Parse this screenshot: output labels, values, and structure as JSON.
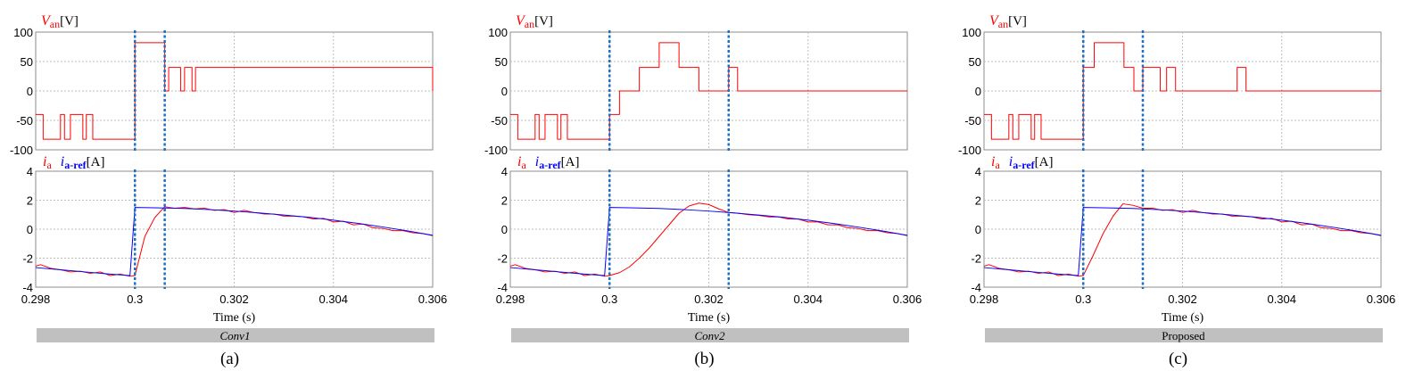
{
  "chart_data": [
    {
      "type": "line",
      "panel_label": "(a)",
      "caption": "Conv1",
      "caption_italic": true,
      "xlabel": "Time (s)",
      "xlim": [
        0.298,
        0.306
      ],
      "xticks": [
        0.298,
        0.3,
        0.302,
        0.304,
        0.306
      ],
      "xtick_labels": [
        "0.298",
        "0.3",
        "0.302",
        "0.304",
        "0.306"
      ],
      "vlines": [
        0.3,
        0.3006
      ],
      "top": {
        "ylabel_main": "V",
        "ylabel_sub": "an",
        "ylabel_unit": "[V]",
        "ylim": [
          -100,
          100
        ],
        "yticks": [
          100,
          50,
          0,
          -50,
          -100
        ],
        "series": [
          {
            "color": "#ff0000",
            "step": true,
            "x": [
              0.298,
              0.29815,
              0.2985,
              0.29858,
              0.2987,
              0.29895,
              0.29902,
              0.29915,
              0.29932,
              0.3,
              0.3006,
              0.30068,
              0.3008,
              0.30092,
              0.301,
              0.30115,
              0.30122,
              0.306
            ],
            "y": [
              -40,
              -82,
              -40,
              -82,
              -40,
              -82,
              -40,
              -82,
              -82,
              82,
              0,
              40,
              40,
              0,
              40,
              0,
              40,
              0
            ]
          }
        ]
      },
      "bottom": {
        "ylabel_main": "i",
        "ylabel_sub": "a",
        "ylabel_ref_main": "i",
        "ylabel_ref_sub": "a-ref",
        "ylabel_unit": "[A]",
        "ylim": [
          -4,
          4
        ],
        "yticks": [
          4,
          2,
          0,
          -2,
          -4
        ],
        "series": [
          {
            "name_main": "i",
            "name_sub": "a",
            "color": "#ff0000",
            "x": [
              0.298,
              0.2981,
              0.2983,
              0.2985,
              0.2987,
              0.2989,
              0.2991,
              0.2993,
              0.2995,
              0.2997,
              0.2999,
              0.3,
              0.3002,
              0.3004,
              0.3006,
              0.3008,
              0.301,
              0.3012,
              0.3014,
              0.3016,
              0.3018,
              0.302,
              0.3022,
              0.3024,
              0.3026,
              0.3028,
              0.303,
              0.3032,
              0.3034,
              0.3036,
              0.3038,
              0.304,
              0.3042,
              0.3044,
              0.3046,
              0.3048,
              0.305,
              0.3052,
              0.3054,
              0.3056,
              0.3058,
              0.306
            ],
            "y": [
              -2.55,
              -2.45,
              -2.7,
              -2.8,
              -2.95,
              -2.9,
              -3.05,
              -2.95,
              -3.2,
              -3.1,
              -3.25,
              -3.2,
              -0.5,
              0.8,
              1.55,
              1.45,
              1.5,
              1.4,
              1.45,
              1.3,
              1.35,
              1.15,
              1.3,
              1.15,
              1.05,
              1.05,
              0.9,
              0.9,
              0.85,
              0.7,
              0.75,
              0.5,
              0.55,
              0.3,
              0.35,
              0.1,
              0.05,
              -0.1,
              -0.1,
              -0.25,
              -0.3,
              -0.45
            ]
          },
          {
            "name_main": "i",
            "name_sub": "a-ref",
            "color": "#0000ff",
            "x": [
              0.298,
              0.2985,
              0.299,
              0.2995,
              0.2999,
              0.3,
              0.3004,
              0.301,
              0.3015,
              0.302,
              0.3025,
              0.303,
              0.3035,
              0.304,
              0.3045,
              0.305,
              0.3055,
              0.306
            ],
            "y": [
              -2.65,
              -2.8,
              -2.95,
              -3.1,
              -3.2,
              1.5,
              1.48,
              1.43,
              1.35,
              1.25,
              1.12,
              0.98,
              0.82,
              0.62,
              0.4,
              0.15,
              -0.12,
              -0.42
            ]
          }
        ]
      }
    },
    {
      "type": "line",
      "panel_label": "(b)",
      "caption": "Conv2",
      "caption_italic": true,
      "xlabel": "Time (s)",
      "xlim": [
        0.298,
        0.306
      ],
      "xticks": [
        0.298,
        0.3,
        0.302,
        0.304,
        0.306
      ],
      "xtick_labels": [
        "0.298",
        "0.3",
        "0.302",
        "0.304",
        "0.306"
      ],
      "vlines": [
        0.3,
        0.3024
      ],
      "top": {
        "ylabel_main": "V",
        "ylabel_sub": "an",
        "ylabel_unit": "[V]",
        "ylim": [
          -100,
          100
        ],
        "yticks": [
          100,
          50,
          0,
          -50,
          -100
        ],
        "series": [
          {
            "color": "#ff0000",
            "step": true,
            "x": [
              0.298,
              0.29815,
              0.2985,
              0.29858,
              0.2987,
              0.29895,
              0.29902,
              0.29915,
              0.29932,
              0.3,
              0.3002,
              0.3006,
              0.301,
              0.3014,
              0.3018,
              0.3024,
              0.30258,
              0.306
            ],
            "y": [
              -40,
              -82,
              -40,
              -82,
              -40,
              -82,
              -40,
              -82,
              -82,
              -40,
              0,
              40,
              82,
              40,
              0,
              40,
              0,
              0
            ]
          }
        ]
      },
      "bottom": {
        "ylabel_main": "i",
        "ylabel_sub": "a",
        "ylabel_ref_main": "i",
        "ylabel_ref_sub": "a-ref",
        "ylabel_unit": "[A]",
        "ylim": [
          -4,
          4
        ],
        "yticks": [
          4,
          2,
          0,
          -2,
          -4
        ],
        "series": [
          {
            "name_main": "i",
            "name_sub": "a",
            "color": "#ff0000",
            "x": [
              0.298,
              0.2981,
              0.2983,
              0.2985,
              0.2987,
              0.2989,
              0.2991,
              0.2993,
              0.2995,
              0.2997,
              0.2999,
              0.3,
              0.3002,
              0.3004,
              0.3006,
              0.3008,
              0.301,
              0.3012,
              0.3014,
              0.3016,
              0.3018,
              0.302,
              0.3022,
              0.3024,
              0.3026,
              0.3028,
              0.303,
              0.3032,
              0.3034,
              0.3036,
              0.3038,
              0.304,
              0.3042,
              0.3044,
              0.3046,
              0.3048,
              0.305,
              0.3052,
              0.3054,
              0.3056,
              0.3058,
              0.306
            ],
            "y": [
              -2.55,
              -2.45,
              -2.7,
              -2.8,
              -2.95,
              -2.9,
              -3.05,
              -2.95,
              -3.2,
              -3.1,
              -3.25,
              -3.2,
              -3.0,
              -2.6,
              -2.0,
              -1.3,
              -0.5,
              0.3,
              1.1,
              1.6,
              1.8,
              1.7,
              1.4,
              1.15,
              1.1,
              1.0,
              0.95,
              0.85,
              0.85,
              0.7,
              0.7,
              0.5,
              0.5,
              0.3,
              0.3,
              0.1,
              0.05,
              -0.1,
              -0.1,
              -0.25,
              -0.3,
              -0.45
            ]
          },
          {
            "name_main": "i",
            "name_sub": "a-ref",
            "color": "#0000ff",
            "x": [
              0.298,
              0.2985,
              0.299,
              0.2995,
              0.2999,
              0.3,
              0.3004,
              0.301,
              0.3015,
              0.302,
              0.3025,
              0.303,
              0.3035,
              0.304,
              0.3045,
              0.305,
              0.3055,
              0.306
            ],
            "y": [
              -2.65,
              -2.8,
              -2.95,
              -3.1,
              -3.2,
              1.5,
              1.48,
              1.43,
              1.35,
              1.25,
              1.12,
              0.98,
              0.82,
              0.62,
              0.4,
              0.15,
              -0.12,
              -0.42
            ]
          }
        ]
      }
    },
    {
      "type": "line",
      "panel_label": "(c)",
      "caption": "Proposed",
      "caption_italic": false,
      "xlabel": "Time (s)",
      "xlim": [
        0.298,
        0.306
      ],
      "xticks": [
        0.298,
        0.3,
        0.302,
        0.304,
        0.306
      ],
      "xtick_labels": [
        "0.298",
        "0.3",
        "0.302",
        "0.304",
        "0.306"
      ],
      "vlines": [
        0.3,
        0.3012
      ],
      "top": {
        "ylabel_main": "V",
        "ylabel_sub": "an",
        "ylabel_unit": "[V]",
        "ylim": [
          -100,
          100
        ],
        "yticks": [
          100,
          50,
          0,
          -50,
          -100
        ],
        "series": [
          {
            "color": "#ff0000",
            "step": true,
            "x": [
              0.298,
              0.29815,
              0.2985,
              0.29858,
              0.2987,
              0.29895,
              0.29902,
              0.29915,
              0.29932,
              0.3,
              0.30022,
              0.30082,
              0.30102,
              0.3012,
              0.30155,
              0.30168,
              0.30186,
              0.3022,
              0.3031,
              0.30328,
              0.306
            ],
            "y": [
              -40,
              -82,
              -40,
              -82,
              -40,
              -82,
              -40,
              -82,
              -82,
              40,
              82,
              40,
              0,
              40,
              0,
              40,
              0,
              0,
              40,
              0,
              0
            ]
          }
        ]
      },
      "bottom": {
        "ylabel_main": "i",
        "ylabel_sub": "a",
        "ylabel_ref_main": "i",
        "ylabel_ref_sub": "a-ref",
        "ylabel_unit": "[A]",
        "ylim": [
          -4,
          4
        ],
        "yticks": [
          4,
          2,
          0,
          -2,
          -4
        ],
        "series": [
          {
            "name_main": "i",
            "name_sub": "a",
            "color": "#ff0000",
            "x": [
              0.298,
              0.2981,
              0.2983,
              0.2985,
              0.2987,
              0.2989,
              0.2991,
              0.2993,
              0.2995,
              0.2997,
              0.2999,
              0.3,
              0.3002,
              0.3004,
              0.3006,
              0.3008,
              0.301,
              0.3012,
              0.3014,
              0.3016,
              0.3018,
              0.302,
              0.3022,
              0.3024,
              0.3026,
              0.3028,
              0.303,
              0.3032,
              0.3034,
              0.3036,
              0.3038,
              0.304,
              0.3042,
              0.3044,
              0.3046,
              0.3048,
              0.305,
              0.3052,
              0.3054,
              0.3056,
              0.3058,
              0.306
            ],
            "y": [
              -2.55,
              -2.45,
              -2.7,
              -2.8,
              -2.95,
              -2.9,
              -3.05,
              -2.95,
              -3.2,
              -3.1,
              -3.25,
              -3.2,
              -1.8,
              -0.3,
              0.9,
              1.75,
              1.65,
              1.45,
              1.45,
              1.3,
              1.35,
              1.15,
              1.3,
              1.15,
              1.05,
              1.05,
              0.9,
              0.9,
              0.85,
              0.7,
              0.75,
              0.5,
              0.55,
              0.3,
              0.35,
              0.1,
              0.05,
              -0.1,
              -0.1,
              -0.25,
              -0.3,
              -0.45
            ]
          },
          {
            "name_main": "i",
            "name_sub": "a-ref",
            "color": "#0000ff",
            "x": [
              0.298,
              0.2985,
              0.299,
              0.2995,
              0.2999,
              0.3,
              0.3004,
              0.301,
              0.3015,
              0.302,
              0.3025,
              0.303,
              0.3035,
              0.304,
              0.3045,
              0.305,
              0.3055,
              0.306
            ],
            "y": [
              -2.65,
              -2.8,
              -2.95,
              -3.1,
              -3.2,
              1.5,
              1.48,
              1.43,
              1.35,
              1.25,
              1.12,
              0.98,
              0.82,
              0.62,
              0.4,
              0.15,
              -0.12,
              -0.42
            ]
          }
        ]
      }
    }
  ]
}
